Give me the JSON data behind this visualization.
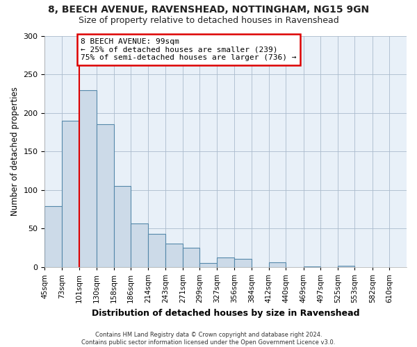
{
  "title": "8, BEECH AVENUE, RAVENSHEAD, NOTTINGHAM, NG15 9GN",
  "subtitle": "Size of property relative to detached houses in Ravenshead",
  "xlabel": "Distribution of detached houses by size in Ravenshead",
  "ylabel": "Number of detached properties",
  "bar_values": [
    79,
    190,
    229,
    185,
    105,
    57,
    43,
    31,
    25,
    5,
    13,
    11,
    0,
    6,
    0,
    1,
    0,
    2
  ],
  "bin_edges": [
    45,
    73,
    101,
    130,
    158,
    186,
    214,
    243,
    271,
    299,
    327,
    356,
    384,
    412,
    440,
    469,
    497,
    525,
    553
  ],
  "all_tick_positions": [
    45,
    73,
    101,
    130,
    158,
    186,
    214,
    243,
    271,
    299,
    327,
    356,
    384,
    412,
    440,
    469,
    497,
    525,
    553,
    582,
    610
  ],
  "bin_labels": [
    "45sqm",
    "73sqm",
    "101sqm",
    "130sqm",
    "158sqm",
    "186sqm",
    "214sqm",
    "243sqm",
    "271sqm",
    "299sqm",
    "327sqm",
    "356sqm",
    "384sqm",
    "412sqm",
    "440sqm",
    "469sqm",
    "497sqm",
    "525sqm",
    "553sqm",
    "582sqm",
    "610sqm"
  ],
  "bar_color": "#ccdae8",
  "bar_edge_color": "#5588aa",
  "marker_x": 101,
  "marker_line_color": "#dd0000",
  "annotation_line1": "8 BEECH AVENUE: 99sqm",
  "annotation_line2": "← 25% of detached houses are smaller (239)",
  "annotation_line3": "75% of semi-detached houses are larger (736) →",
  "annotation_box_color": "#ffffff",
  "annotation_box_edge": "#dd0000",
  "ylim": [
    0,
    300
  ],
  "yticks": [
    0,
    50,
    100,
    150,
    200,
    250,
    300
  ],
  "xlim_left": 45,
  "xlim_right": 638,
  "footer_text": "Contains HM Land Registry data © Crown copyright and database right 2024.\nContains public sector information licensed under the Open Government Licence v3.0.",
  "background_color": "#ffffff",
  "plot_background": "#e8f0f8",
  "grid_color": "#aabbcc",
  "title_fontsize": 10,
  "subtitle_fontsize": 9
}
